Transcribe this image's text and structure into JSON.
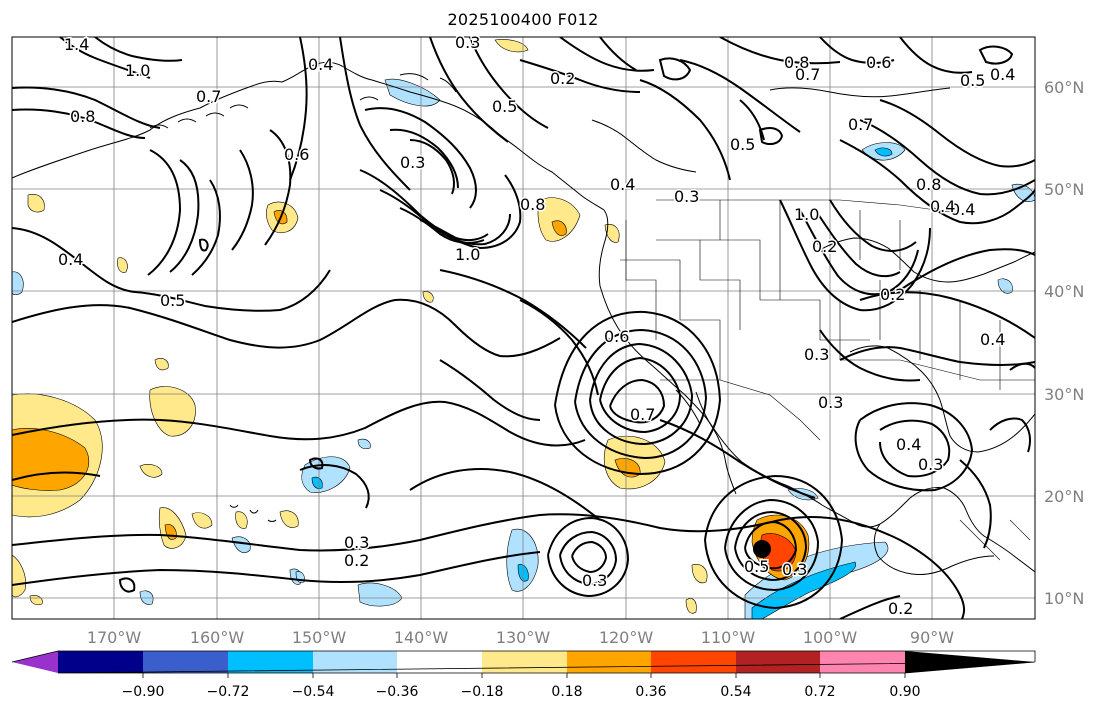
{
  "title": "2025100400 F012",
  "longitude_labels": [
    "170°W",
    "160°W",
    "150°W",
    "140°W",
    "130°W",
    "120°W",
    "110°W",
    "100°W",
    "90°W"
  ],
  "latitude_labels": [
    "60°N",
    "50°N",
    "40°N",
    "30°N",
    "20°N",
    "10°N"
  ],
  "colorbar": {
    "tick_labels": [
      "−0.90",
      "−0.72",
      "−0.54",
      "−0.36",
      "−0.18",
      "0.18",
      "0.36",
      "0.54",
      "0.72",
      "0.90"
    ],
    "colors": [
      "#9932cc",
      "#00008b",
      "#3a5fcd",
      "#00bfff",
      "#b0e2ff",
      "#ffffff",
      "#ffe98a",
      "#ffa500",
      "#ff4500",
      "#b22222",
      "#ff85b0"
    ]
  },
  "contour_labels": [
    {
      "text": "1.4"
    },
    {
      "text": "1.0"
    },
    {
      "text": "0.7"
    },
    {
      "text": "0.8"
    },
    {
      "text": "0.4"
    },
    {
      "text": "0.4"
    },
    {
      "text": "0.3"
    },
    {
      "text": "0.6"
    },
    {
      "text": "0.3"
    },
    {
      "text": "1.0"
    },
    {
      "text": "0.8"
    },
    {
      "text": "0.4"
    },
    {
      "text": "0.3"
    },
    {
      "text": "0.5"
    },
    {
      "text": "0.2"
    },
    {
      "text": "0.8"
    },
    {
      "text": "0.7"
    },
    {
      "text": "0.6"
    },
    {
      "text": "0.5"
    },
    {
      "text": "0.4"
    },
    {
      "text": "0.7"
    },
    {
      "text": "0.8"
    },
    {
      "text": "0.4"
    },
    {
      "text": "1.0"
    },
    {
      "text": "0.2"
    },
    {
      "text": "0.5"
    },
    {
      "text": "0.4"
    },
    {
      "text": "0.5"
    },
    {
      "text": "0.6"
    },
    {
      "text": "0.7"
    },
    {
      "text": "0.3"
    },
    {
      "text": "0.4"
    },
    {
      "text": "0.3"
    },
    {
      "text": "0.3"
    },
    {
      "text": "0.2"
    },
    {
      "text": "0.3"
    },
    {
      "text": "0.5"
    },
    {
      "text": "0.3"
    },
    {
      "text": "0.2"
    },
    {
      "text": "0.4"
    },
    {
      "text": "0.3"
    },
    {
      "text": "0.2"
    }
  ]
}
